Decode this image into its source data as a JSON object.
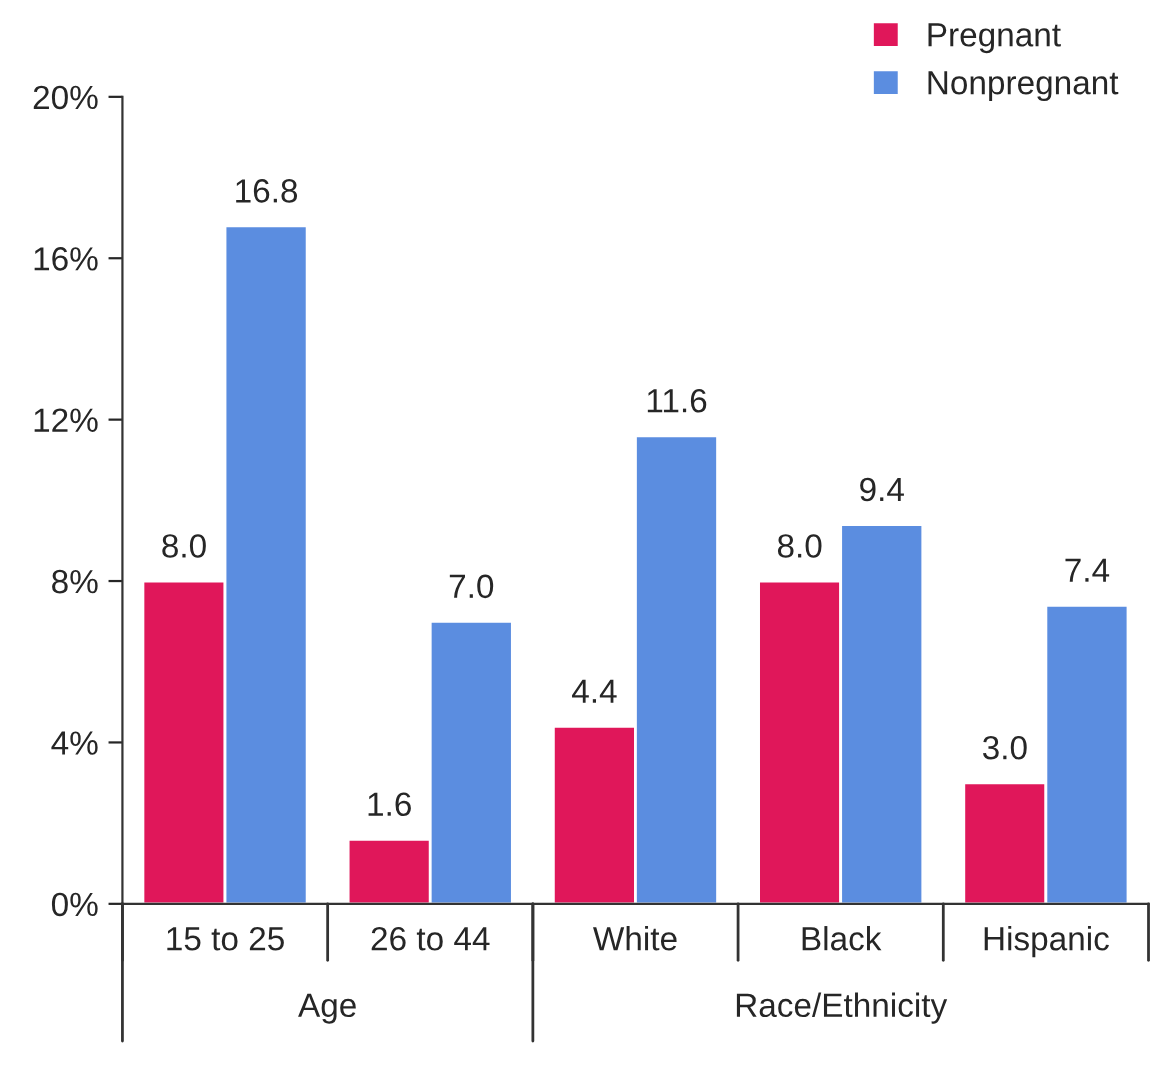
{
  "chart_data": {
    "type": "bar",
    "categories": [
      "15 to 25",
      "26 to 44",
      "White",
      "Black",
      "Hispanic"
    ],
    "series": [
      {
        "name": "Pregnant",
        "color": "#e0175a",
        "values": [
          8.0,
          1.6,
          4.4,
          8.0,
          3.0
        ],
        "value_labels": [
          "8.0",
          "1.6",
          "4.4",
          "8.0",
          "3.0"
        ]
      },
      {
        "name": "Nonpregnant",
        "color": "#5b8de0",
        "values": [
          16.8,
          7.0,
          11.6,
          9.4,
          7.4
        ],
        "value_labels": [
          "16.8",
          "7.0",
          "11.6",
          "9.4",
          "7.4"
        ]
      }
    ],
    "ylim": [
      0,
      20
    ],
    "yticks": [
      {
        "value": 0,
        "label": "0%"
      },
      {
        "value": 4,
        "label": "4%"
      },
      {
        "value": 8,
        "label": "8%"
      },
      {
        "value": 12,
        "label": "12%"
      },
      {
        "value": 16,
        "label": "16%"
      },
      {
        "value": 20,
        "label": "20%"
      }
    ],
    "annotations": [
      "Age",
      "Race/Ethnicity"
    ],
    "legend": "top right",
    "grid": false
  }
}
